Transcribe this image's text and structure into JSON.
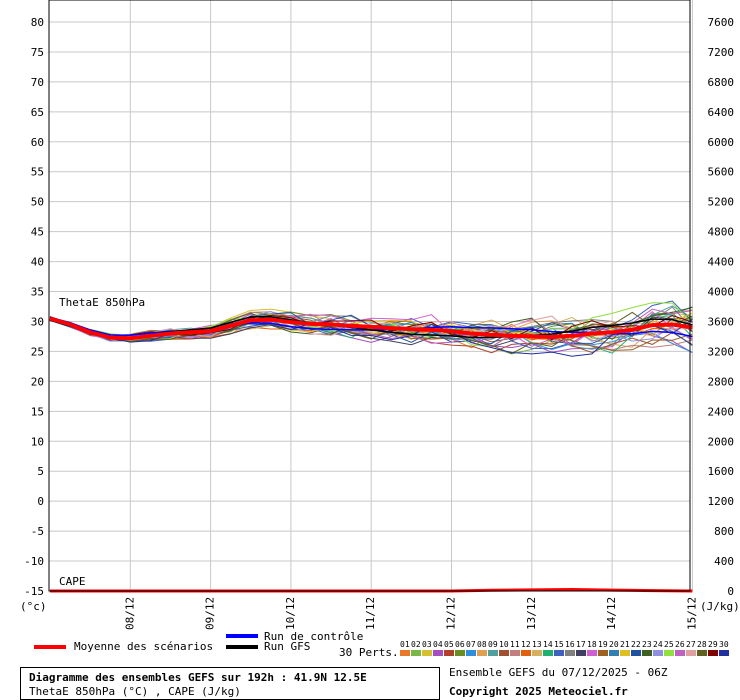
{
  "chart_data": {
    "type": "line",
    "left_axis": {
      "min": -15,
      "max": 80,
      "step": 5,
      "unit": "(°c)"
    },
    "right_axis": {
      "min": 0,
      "max": 7600,
      "step": 400,
      "unit": "(J/kg)"
    },
    "x_labels": [
      "08/12",
      "09/12",
      "10/12",
      "11/12",
      "12/12",
      "13/12",
      "14/12",
      "15/12"
    ],
    "series_labels": {
      "thetae": "ThetaE 850hPa",
      "cape": "CAPE"
    },
    "mean_series": {
      "name": "Moyenne des scénarios",
      "color": "#ff0000",
      "t": [
        0,
        0.25,
        0.5,
        0.75,
        1.0,
        1.25,
        1.5,
        1.75,
        2.0,
        2.25,
        2.5,
        2.75,
        3.0,
        3.25,
        3.5,
        3.75,
        4.0,
        4.25,
        4.5,
        4.75,
        5.0,
        5.25,
        5.5,
        5.75,
        6.0,
        6.25,
        6.5,
        6.75,
        7.0,
        7.25,
        7.5,
        7.75,
        8.0
      ],
      "values": [
        30.5,
        29.5,
        28.2,
        27.3,
        27.2,
        27.6,
        28.0,
        28.2,
        28.4,
        29.3,
        30.2,
        30.3,
        29.9,
        29.6,
        29.5,
        29.3,
        29.1,
        28.9,
        28.7,
        28.6,
        28.4,
        28.0,
        27.8,
        27.6,
        27.5,
        27.4,
        27.6,
        28.0,
        28.2,
        28.6,
        29.4,
        29.5,
        29.0
      ]
    },
    "control_run": {
      "name": "Run de contrôle",
      "color": "#0000ff"
    },
    "gfs_run": {
      "name": "Run GFS",
      "color": "#000000"
    },
    "perturbations": {
      "label": "30 Perts.",
      "ids": [
        "01",
        "02",
        "03",
        "04",
        "05",
        "06",
        "07",
        "08",
        "09",
        "10",
        "11",
        "12",
        "13",
        "14",
        "15",
        "16",
        "17",
        "18",
        "19",
        "20",
        "21",
        "22",
        "23",
        "24",
        "25",
        "26",
        "27",
        "28",
        "29",
        "30"
      ],
      "colors": [
        "#e8792a",
        "#7ab648",
        "#d4c032",
        "#a64dbf",
        "#b0402a",
        "#6b8e23",
        "#2f8fdc",
        "#e0a050",
        "#50a0a0",
        "#a05030",
        "#c08080",
        "#e06010",
        "#d4b060",
        "#20b070",
        "#4060c0",
        "#808080",
        "#404060",
        "#d060d0",
        "#a06020",
        "#3080b0",
        "#e0c020",
        "#2050a0",
        "#406020",
        "#9090e0",
        "#90e040",
        "#c060c0",
        "#e0a0a0",
        "#606020",
        "#800000",
        "#2030a0"
      ]
    },
    "cape": {
      "values_jkg": [
        0,
        0,
        0,
        0,
        0,
        0,
        0,
        0,
        0,
        0,
        0,
        10,
        15,
        20,
        12,
        5,
        0
      ]
    }
  },
  "footer": {
    "title": "Diagramme des ensembles GEFS sur 192h : 41.9N 12.5E",
    "subtitle": "ThetaE 850hPa (°C) , CAPE (J/kg)",
    "run_info": "Ensemble GEFS du 07/12/2025 - 06Z",
    "copyright": "Copyright 2025 Meteociel.fr"
  }
}
